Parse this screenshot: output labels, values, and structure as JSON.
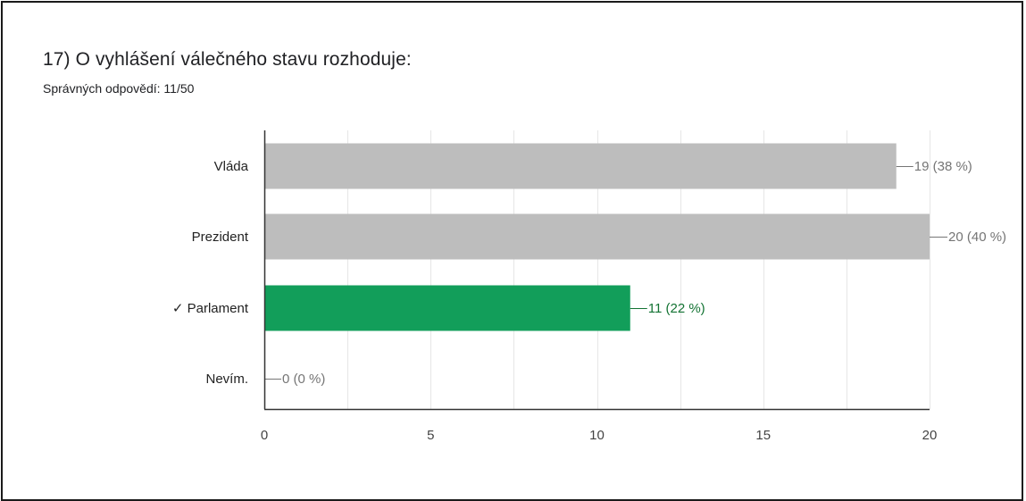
{
  "question": {
    "title": "17) O vyhlášení válečného stavu rozhoduje:",
    "score": "Správných odpovědí: 11/50"
  },
  "colors": {
    "incorrect_bar": "#bdbdbd",
    "correct_bar": "#129e5a",
    "incorrect_label": "#757575",
    "correct_label": "#137333",
    "grid": "#e6e6e6",
    "axis": "#333333"
  },
  "chart_data": {
    "type": "bar",
    "orientation": "horizontal",
    "categories": [
      "Vláda",
      "Prezident",
      "✓ Parlament",
      "Nevím."
    ],
    "values": [
      19,
      20,
      11,
      0
    ],
    "data_labels": [
      "19 (38 %)",
      "20 (40 %)",
      "11 (22 %)",
      "0 (0 %)"
    ],
    "correct": [
      false,
      false,
      true,
      false
    ],
    "xlim": [
      0,
      20
    ],
    "xticks": [
      0,
      5,
      10,
      15,
      20
    ],
    "grid": true,
    "legend": "none"
  }
}
